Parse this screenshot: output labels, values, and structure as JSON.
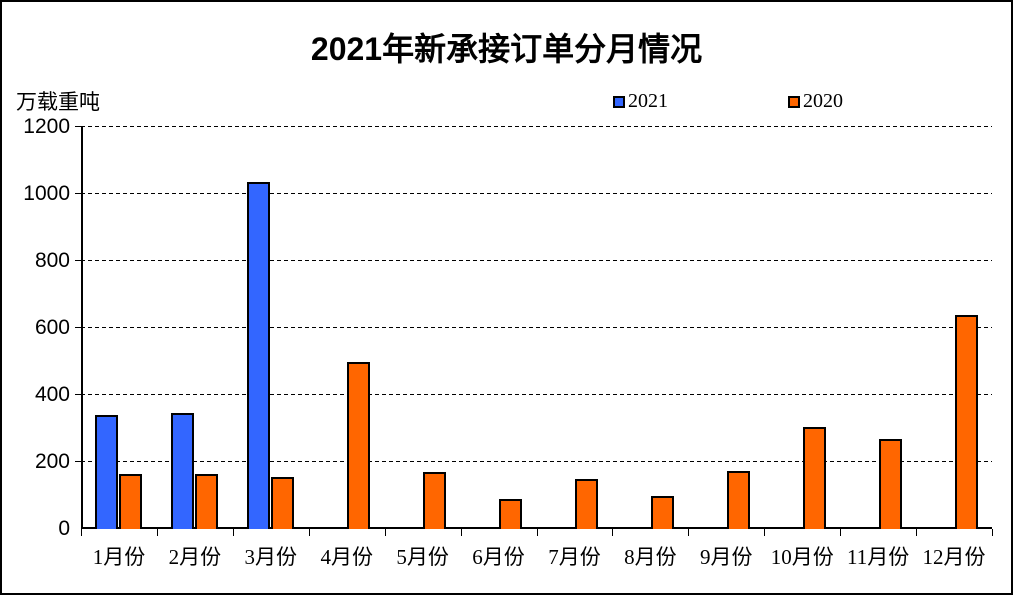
{
  "chart_data": {
    "type": "bar",
    "title": "2021年新承接订单分月情况",
    "ylabel": "万载重吨",
    "categories": [
      "1月份",
      "2月份",
      "3月份",
      "4月份",
      "5月份",
      "6月份",
      "7月份",
      "8月份",
      "9月份",
      "10月份",
      "11月份",
      "12月份"
    ],
    "series": [
      {
        "name": "2021",
        "color": "#3366FF",
        "values": [
          340,
          345,
          1035,
          0,
          0,
          0,
          0,
          0,
          0,
          0,
          0,
          0
        ]
      },
      {
        "name": "2020",
        "color": "#FF6600",
        "values": [
          165,
          165,
          155,
          500,
          170,
          90,
          150,
          100,
          172,
          305,
          270,
          640
        ]
      }
    ],
    "ylim": [
      0,
      1200
    ],
    "yticks": [
      0,
      200,
      400,
      600,
      800,
      1000,
      1200
    ],
    "grid": "horizontal-dashed",
    "legend_position": "top-center",
    "bar_outline_color": "#000000"
  }
}
